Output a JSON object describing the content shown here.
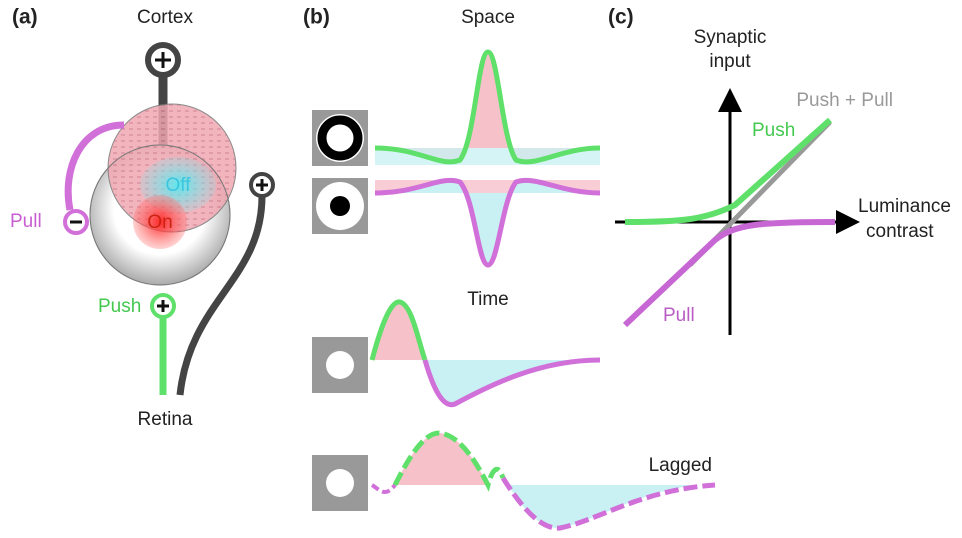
{
  "panel_a": {
    "label": "(a)",
    "title": "Cortex",
    "pull": "Pull",
    "push": "Push",
    "bottom": "Retina",
    "off": "Off",
    "on": "On"
  },
  "panel_b": {
    "label": "(b)",
    "space": "Space",
    "time": "Time",
    "lagged": "Lagged"
  },
  "panel_c": {
    "label": "(c)",
    "y_axis": [
      "Synaptic",
      "input"
    ],
    "x_axis": [
      "Luminance",
      "contrast"
    ],
    "push_pull": "Push + Pull",
    "push": "Push",
    "pull": "Pull"
  }
}
